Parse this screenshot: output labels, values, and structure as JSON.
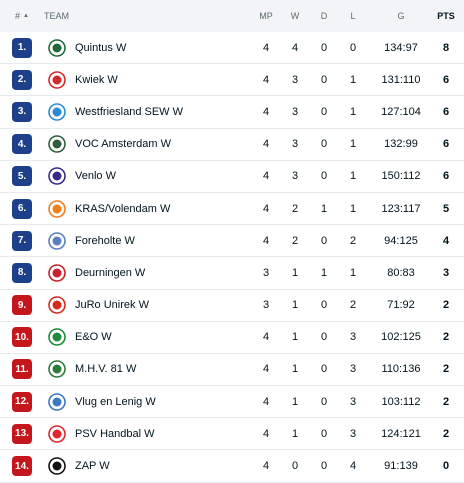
{
  "header": {
    "rank": "#",
    "team": "TEAM",
    "mp": "MP",
    "w": "W",
    "d": "D",
    "l": "L",
    "g": "G",
    "pts": "PTS"
  },
  "colors": {
    "zone_blue": "#1e3f8a",
    "zone_red": "#c4161c"
  },
  "rows": [
    {
      "rank": "1.",
      "team": "Quintus W",
      "mp": "4",
      "w": "4",
      "d": "0",
      "l": "0",
      "g": "134:97",
      "pts": "8",
      "zone": "blue",
      "logo_icon": "quintus-logo-icon",
      "logo_color": "#1f6b3a"
    },
    {
      "rank": "2.",
      "team": "Kwiek W",
      "mp": "4",
      "w": "3",
      "d": "0",
      "l": "1",
      "g": "131:110",
      "pts": "6",
      "zone": "blue",
      "logo_icon": "kwiek-logo-icon",
      "logo_color": "#d12b2b"
    },
    {
      "rank": "3.",
      "team": "Westfriesland SEW W",
      "mp": "4",
      "w": "3",
      "d": "0",
      "l": "1",
      "g": "127:104",
      "pts": "6",
      "zone": "blue",
      "logo_icon": "westfriesland-logo-icon",
      "logo_color": "#2a8bd4"
    },
    {
      "rank": "4.",
      "team": "VOC Amsterdam W",
      "mp": "4",
      "w": "3",
      "d": "0",
      "l": "1",
      "g": "132:99",
      "pts": "6",
      "zone": "blue",
      "logo_icon": "voc-logo-icon",
      "logo_color": "#2e5e3b"
    },
    {
      "rank": "5.",
      "team": "Venlo W",
      "mp": "4",
      "w": "3",
      "d": "0",
      "l": "1",
      "g": "150:112",
      "pts": "6",
      "zone": "blue",
      "logo_icon": "venlo-logo-icon",
      "logo_color": "#3a2a8a"
    },
    {
      "rank": "6.",
      "team": "KRAS/Volendam W",
      "mp": "4",
      "w": "2",
      "d": "1",
      "l": "1",
      "g": "123:117",
      "pts": "5",
      "zone": "blue",
      "logo_icon": "kras-logo-icon",
      "logo_color": "#f07f1a"
    },
    {
      "rank": "7.",
      "team": "Foreholte W",
      "mp": "4",
      "w": "2",
      "d": "0",
      "l": "2",
      "g": "94:125",
      "pts": "4",
      "zone": "blue",
      "logo_icon": "foreholte-logo-icon",
      "logo_color": "#5a7fc0"
    },
    {
      "rank": "8.",
      "team": "Deurningen W",
      "mp": "3",
      "w": "1",
      "d": "1",
      "l": "1",
      "g": "80:83",
      "pts": "3",
      "zone": "blue",
      "logo_icon": "deurningen-logo-icon",
      "logo_color": "#c9202a"
    },
    {
      "rank": "9.",
      "team": "JuRo Unirek W",
      "mp": "3",
      "w": "1",
      "d": "0",
      "l": "2",
      "g": "71:92",
      "pts": "2",
      "zone": "red",
      "logo_icon": "juro-logo-icon",
      "logo_color": "#d52b1e"
    },
    {
      "rank": "10.",
      "team": "E&O W",
      "mp": "4",
      "w": "1",
      "d": "0",
      "l": "3",
      "g": "102:125",
      "pts": "2",
      "zone": "red",
      "logo_icon": "eo-logo-icon",
      "logo_color": "#1e8a3a"
    },
    {
      "rank": "11.",
      "team": "M.H.V. 81 W",
      "mp": "4",
      "w": "1",
      "d": "0",
      "l": "3",
      "g": "110:136",
      "pts": "2",
      "zone": "red",
      "logo_icon": "mhv-logo-icon",
      "logo_color": "#2d7a3d"
    },
    {
      "rank": "12.",
      "team": "Vlug en Lenig W",
      "mp": "4",
      "w": "1",
      "d": "0",
      "l": "3",
      "g": "103:112",
      "pts": "2",
      "zone": "red",
      "logo_icon": "vlug-en-lenig-logo-icon",
      "logo_color": "#3a78c4"
    },
    {
      "rank": "13.",
      "team": "PSV Handbal W",
      "mp": "4",
      "w": "1",
      "d": "0",
      "l": "3",
      "g": "124:121",
      "pts": "2",
      "zone": "red",
      "logo_icon": "psv-logo-icon",
      "logo_color": "#e0262d"
    },
    {
      "rank": "14.",
      "team": "ZAP W",
      "mp": "4",
      "w": "0",
      "d": "0",
      "l": "4",
      "g": "91:139",
      "pts": "0",
      "zone": "red",
      "logo_icon": "zap-logo-icon",
      "logo_color": "#111111"
    }
  ]
}
